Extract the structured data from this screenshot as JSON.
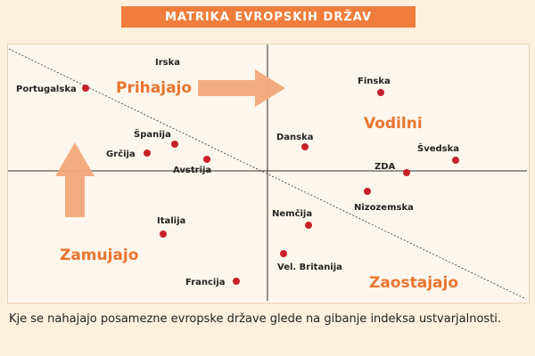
{
  "title": "MATRIKA EVROPSKIH DRŽAV",
  "quadrants": {
    "top_left": "Prihajajo",
    "top_right": "Vodilni",
    "bottom_left": "Zamujajo",
    "bottom_right": "Zaostajajo"
  },
  "countries": [
    {
      "name": "Irska"
    },
    {
      "name": "Portugalska"
    },
    {
      "name": "Finska"
    },
    {
      "name": "Španija"
    },
    {
      "name": "Grčija"
    },
    {
      "name": "Avstrija"
    },
    {
      "name": "Danska"
    },
    {
      "name": "Švedska"
    },
    {
      "name": "ZDA"
    },
    {
      "name": "Nizozemska"
    },
    {
      "name": "Italija"
    },
    {
      "name": "Nemčija"
    },
    {
      "name": "Vel. Britanija"
    },
    {
      "name": "Francija"
    }
  ],
  "caption": "Kje se nahajajo posamezne evropske države glede na gibanje indeksa ustvarjalnosti.",
  "colors": {
    "accent": "#f07d3c",
    "dot": "#c8202a",
    "arrow": "#f2a87a",
    "background": "#fdf0dc"
  }
}
